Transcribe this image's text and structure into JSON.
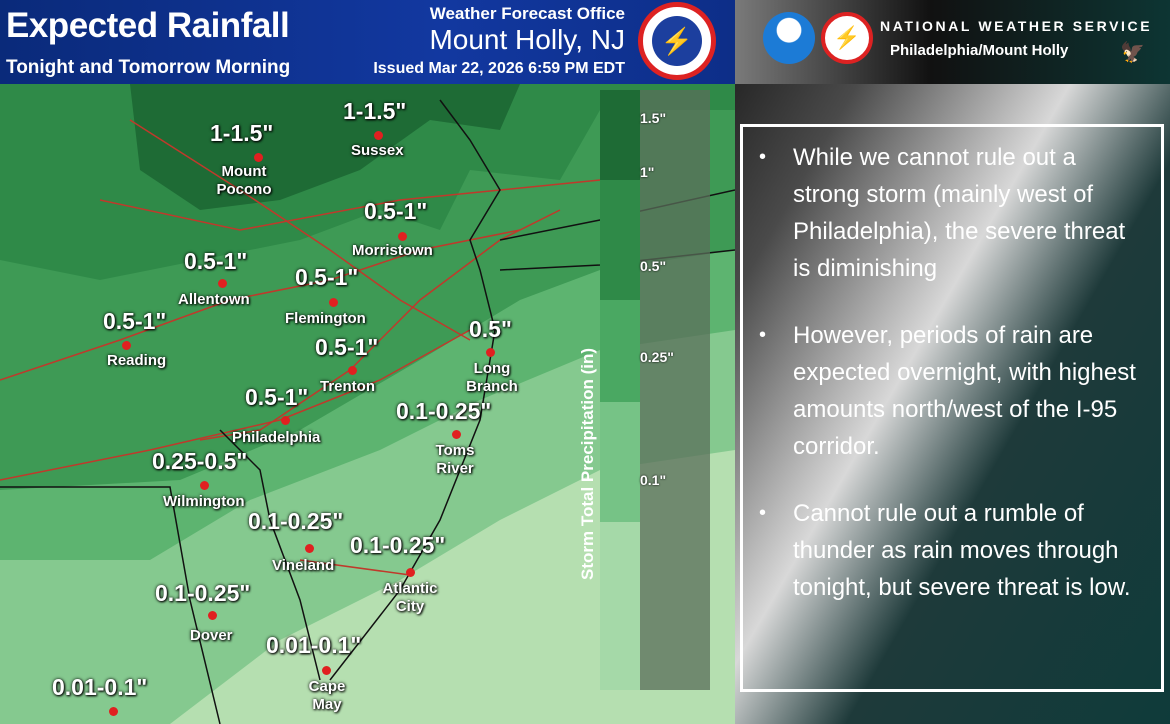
{
  "header": {
    "title": "Expected Rainfall",
    "subtitle": "Tonight and Tomorrow Morning",
    "office_line1": "Weather Forecast Office",
    "office_line2": "Mount Holly, NJ",
    "issued": "Issued Mar 22, 2026 6:59 PM EDT"
  },
  "branding": {
    "agency": "NATIONAL WEATHER SERVICE",
    "office": "Philadelphia/Mount Holly",
    "logos": [
      "noaa-logo",
      "nws-logo"
    ]
  },
  "legend": {
    "title": "Storm Total Precipitation (in)",
    "ticks": [
      "1.5\"",
      "1\"",
      "0.5\"",
      "0.25\"",
      "0.1\""
    ],
    "colors": [
      "#1e6b35",
      "#2f8a48",
      "#4aa862",
      "#76c386",
      "#a5d9a8",
      "#c8e8c2"
    ]
  },
  "cities": [
    {
      "name": "Mount Pocono",
      "amount": "1-1.5\""
    },
    {
      "name": "Sussex",
      "amount": "1-1.5\""
    },
    {
      "name": "Morristown",
      "amount": "0.5-1\""
    },
    {
      "name": "Allentown",
      "amount": "0.5-1\""
    },
    {
      "name": "Flemington",
      "amount": "0.5-1\""
    },
    {
      "name": "Reading",
      "amount": "0.5-1\""
    },
    {
      "name": "Trenton",
      "amount": "0.5-1\""
    },
    {
      "name": "Long Branch",
      "amount": "0.5\""
    },
    {
      "name": "Philadelphia",
      "amount": "0.5-1\""
    },
    {
      "name": "Toms River",
      "amount": "0.1-0.25\""
    },
    {
      "name": "Wilmington",
      "amount": "0.25-0.5\""
    },
    {
      "name": "Vineland",
      "amount": "0.1-0.25\""
    },
    {
      "name": "Atlantic City",
      "amount": "0.1-0.25\""
    },
    {
      "name": "Dover",
      "amount": "0.1-0.25\""
    },
    {
      "name": "Cape May",
      "amount": "0.01-0.1\""
    },
    {
      "name": "",
      "amount": "0.01-0.1\""
    }
  ],
  "bullets": [
    "While we cannot rule out a strong storm (mainly west of Philadelphia), the severe threat is diminishing",
    "However, periods of rain are expected overnight, with highest amounts north/west of the I-95 corridor.",
    "Cannot rule out a rumble of thunder as rain moves through tonight, but severe threat is low."
  ]
}
